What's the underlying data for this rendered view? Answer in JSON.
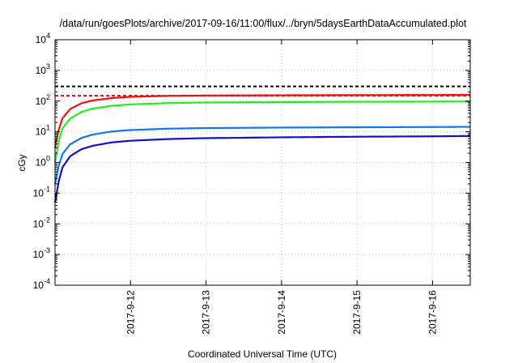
{
  "chart_data": {
    "type": "line",
    "title": "/data/run/goesPlots/archive/2017-09-16/11:00/flux/../bryn/5daysEarthDataAccumulated.plot",
    "xlabel": "Coordinated Universal Time (UTC)",
    "ylabel": "cGy",
    "yscale": "log",
    "ylim_exponents": [
      -4,
      4
    ],
    "y_tick_exponents": [
      -4,
      -3,
      -2,
      -1,
      0,
      1,
      2,
      3,
      4
    ],
    "y_tick_base": "10",
    "x_tick_labels": [
      "2017-9-12",
      "2017-9-13",
      "2017-9-14",
      "2017-9-15",
      "2017-9-16"
    ],
    "xlim_days": [
      11.0,
      16.5
    ],
    "grid": true,
    "reference_lines": [
      {
        "y": 300,
        "color": "#000000",
        "style": "dashed"
      },
      {
        "y": 150,
        "color": "#ee0000",
        "style": "dashed"
      }
    ],
    "series": [
      {
        "color": "#ee1111",
        "points": [
          [
            11.0,
            3.0
          ],
          [
            11.05,
            12
          ],
          [
            11.1,
            28
          ],
          [
            11.2,
            55
          ],
          [
            11.35,
            85
          ],
          [
            11.5,
            105
          ],
          [
            11.75,
            125
          ],
          [
            12.0,
            138
          ],
          [
            12.5,
            148
          ],
          [
            13.0,
            152
          ],
          [
            14.0,
            155
          ],
          [
            15.0,
            157
          ],
          [
            16.0,
            158
          ],
          [
            16.5,
            160
          ]
        ]
      },
      {
        "color": "#22ee22",
        "points": [
          [
            11.0,
            1.0
          ],
          [
            11.05,
            5
          ],
          [
            11.1,
            13
          ],
          [
            11.2,
            27
          ],
          [
            11.35,
            44
          ],
          [
            11.5,
            57
          ],
          [
            11.75,
            70
          ],
          [
            12.0,
            78
          ],
          [
            12.5,
            86
          ],
          [
            13.0,
            90
          ],
          [
            14.0,
            93
          ],
          [
            15.0,
            95
          ],
          [
            16.0,
            96
          ],
          [
            16.5,
            97
          ]
        ]
      },
      {
        "color": "#1177ee",
        "points": [
          [
            11.0,
            0.2
          ],
          [
            11.05,
            0.8
          ],
          [
            11.1,
            1.9
          ],
          [
            11.2,
            3.9
          ],
          [
            11.35,
            6.3
          ],
          [
            11.5,
            8.1
          ],
          [
            11.75,
            10.2
          ],
          [
            12.0,
            11.4
          ],
          [
            12.5,
            12.6
          ],
          [
            13.0,
            13.2
          ],
          [
            14.0,
            13.7
          ],
          [
            15.0,
            14.0
          ],
          [
            16.0,
            14.3
          ],
          [
            16.5,
            14.5
          ]
        ]
      },
      {
        "color": "#1111cc",
        "points": [
          [
            11.0,
            0.05
          ],
          [
            11.05,
            0.25
          ],
          [
            11.1,
            0.7
          ],
          [
            11.2,
            1.6
          ],
          [
            11.35,
            2.7
          ],
          [
            11.5,
            3.5
          ],
          [
            11.75,
            4.5
          ],
          [
            12.0,
            5.1
          ],
          [
            12.5,
            5.8
          ],
          [
            13.0,
            6.2
          ],
          [
            14.0,
            6.6
          ],
          [
            15.0,
            6.9
          ],
          [
            16.0,
            7.1
          ],
          [
            16.5,
            7.3
          ]
        ]
      }
    ]
  }
}
